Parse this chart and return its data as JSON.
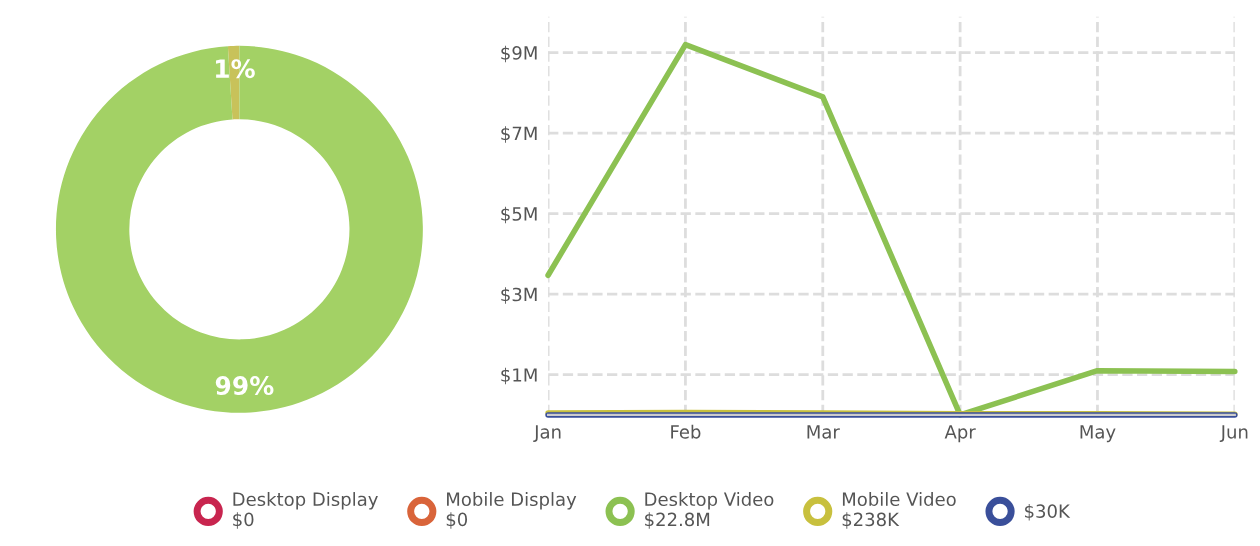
{
  "chart_data": [
    {
      "type": "donut",
      "categories": [
        null,
        null
      ],
      "values": [
        1,
        99
      ],
      "colors": [
        "#c8c25a",
        "#a3d165"
      ],
      "value_labels": [
        "1%",
        "99%"
      ]
    },
    {
      "type": "line",
      "categories": [
        "Jan",
        "Feb",
        "Mar",
        "Apr",
        "May",
        "Jun"
      ],
      "series": [
        {
          "name": "Desktop Display\n$0",
          "color": "#c8254f",
          "values": [
            null,
            null,
            null,
            null,
            null,
            null
          ]
        },
        {
          "name": "Mobile Display\n$0",
          "color": "#d9643a",
          "values": [
            null,
            null,
            null,
            null,
            null,
            null
          ]
        },
        {
          "name": "Desktop Video\n$22.8M",
          "color": "#8cc152",
          "values": [
            3.47,
            9.2,
            7.9,
            0,
            1.1,
            1.08
          ]
        },
        {
          "name": "Mobile Video\n$238K",
          "color": "#c8c03e",
          "values": [
            0.05,
            0.06,
            0.05,
            0.03,
            0.03,
            0.02
          ]
        },
        {
          "name": "$30K",
          "color": "#3a4f9a",
          "values": [
            0,
            0,
            0,
            0,
            0,
            0
          ]
        }
      ],
      "ylim": [
        0,
        9.9
      ],
      "yticks": [
        {
          "value": 1,
          "label": "$1M"
        },
        {
          "value": 3,
          "label": "$3M"
        },
        {
          "value": 5,
          "label": "$5M"
        },
        {
          "value": 7,
          "label": "$7M"
        },
        {
          "value": 9,
          "label": "$9M"
        }
      ],
      "grid": true,
      "legend": "bottom",
      "marker": "none",
      "line_style": "solid"
    }
  ]
}
